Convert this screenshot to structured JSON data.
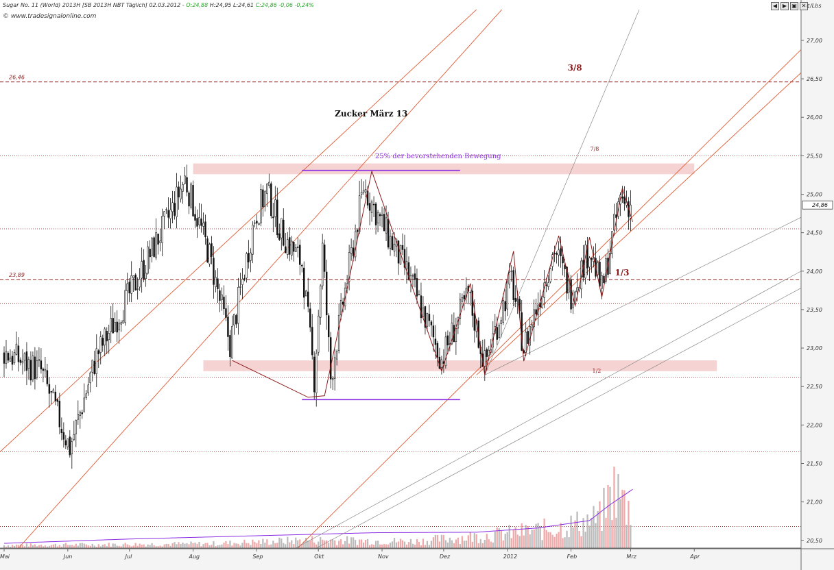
{
  "header": {
    "symbol": "Sugar No. 11 (World) 2013H [SB 2013H NBT Täglich] 02.03.2012 -",
    "open": "O:24,88",
    "high": "H:24,95",
    "low": "L:24,61",
    "close": "C:24,86",
    "change": "-0,06 -0,24%",
    "site": "www.tradesignalonline.com",
    "unit": "¢/Lbs",
    "window_buttons": [
      "◀",
      "▶",
      "▣",
      "✕"
    ]
  },
  "colors": {
    "candle": "#111111",
    "fib_line": "#e05a32",
    "trend_gray": "#888888",
    "level_dashed": "#8b1a1a",
    "zone_fill": "#f6d3d3",
    "purple": "#8a2be2",
    "volume_gray": "#bbbbbb",
    "volume_red": "#f0a8a8"
  },
  "chart_data": {
    "type": "candlestick",
    "title": "Zucker März 13",
    "y_axis": {
      "ylim": [
        20.4,
        27.4
      ],
      "ticks": [
        "20,50",
        "21,00",
        "21,50",
        "22,00",
        "22,50",
        "23,00",
        "23,50",
        "24,00",
        "24,50",
        "25,00",
        "25,50",
        "26,00",
        "26,50",
        "27,00"
      ],
      "tick_values": [
        20.5,
        21.0,
        21.5,
        22.0,
        22.5,
        23.0,
        23.5,
        24.0,
        24.5,
        25.0,
        25.5,
        26.0,
        26.5,
        27.0
      ],
      "last_price_label": "24,86",
      "last_price": 24.86
    },
    "x_axis": {
      "months": [
        "Mai",
        "Jun",
        "Jul",
        "Aug",
        "Sep",
        "Okt",
        "Nov",
        "Dez",
        "2012",
        "Feb",
        "Mrz",
        "Apr"
      ],
      "month_day_index": [
        0,
        31,
        61,
        92,
        123,
        153,
        184,
        214,
        245,
        276,
        305,
        336
      ],
      "last_day_index": 305,
      "xlim_days": [
        -2,
        388
      ]
    },
    "dashed_levels": [
      {
        "value": 26.46,
        "label": "26,46"
      },
      {
        "value": 23.89,
        "label": "23,89"
      }
    ],
    "dotted_levels": [
      25.5,
      24.55,
      23.58,
      22.62,
      21.65,
      20.68
    ],
    "zones": [
      {
        "from_day": 92,
        "to_day": 336,
        "low": 25.26,
        "high": 25.4
      },
      {
        "from_day": 97,
        "to_day": 347,
        "low": 22.7,
        "high": 22.84
      }
    ],
    "range_lines": [
      {
        "from_day": 145,
        "to_day": 222,
        "value": 25.31
      },
      {
        "from_day": 145,
        "to_day": 222,
        "value": 22.33
      }
    ],
    "annotations": [
      {
        "text": "Zucker März 13",
        "day": 176,
        "value": 26.0,
        "kind": "title"
      },
      {
        "text": "25% der bevorstehenden Bewegung",
        "day": 214,
        "value": 25.45,
        "kind": "purple"
      },
      {
        "text": "3/8",
        "day": 277,
        "value": 26.6,
        "kind": "bold"
      },
      {
        "text": "7/8",
        "day": 288,
        "value": 25.56,
        "kind": "small"
      },
      {
        "text": "1/3",
        "day": 300,
        "value": 23.94,
        "kind": "bold"
      },
      {
        "text": "1/2",
        "day": 289,
        "value": 22.67,
        "kind": "small"
      }
    ],
    "waves": [
      [
        [
          111,
          22.84
        ],
        [
          148,
          22.36
        ],
        [
          156,
          22.38
        ],
        [
          179,
          25.3
        ],
        [
          213,
          22.7
        ],
        [
          227,
          23.84
        ],
        [
          234,
          22.65
        ],
        [
          248,
          24.26
        ],
        [
          253,
          22.83
        ],
        [
          270,
          24.46
        ],
        [
          278,
          23.55
        ],
        [
          285,
          24.44
        ],
        [
          291,
          23.66
        ],
        [
          301,
          25.08
        ],
        [
          306,
          24.64
        ]
      ]
    ],
    "fib_lines": [
      [
        [
          -2,
          21.65
        ],
        [
          232,
          27.45
        ]
      ],
      [
        [
          7,
          20.4
        ],
        [
          244,
          27.45
        ]
      ],
      [
        [
          143,
          20.4
        ],
        [
          388,
          26.88
        ]
      ],
      [
        [
          230,
          22.65
        ],
        [
          388,
          26.58
        ]
      ]
    ],
    "trend_gray_lines": [
      [
        [
          142,
          20.4
        ],
        [
          388,
          24.0
        ]
      ],
      [
        [
          152,
          20.4
        ],
        [
          388,
          23.78
        ]
      ],
      [
        [
          234,
          22.65
        ],
        [
          388,
          24.7
        ]
      ],
      [
        [
          234,
          22.65
        ],
        [
          310,
          27.45
        ]
      ]
    ],
    "candle_series": {
      "segments": [
        {
          "from_day": 0,
          "to_day": 18,
          "start": 22.95,
          "end": 22.7
        },
        {
          "from_day": 18,
          "to_day": 32,
          "start": 22.7,
          "end": 21.7
        },
        {
          "from_day": 32,
          "to_day": 45,
          "start": 21.7,
          "end": 22.9
        },
        {
          "from_day": 45,
          "to_day": 65,
          "start": 22.9,
          "end": 23.9
        },
        {
          "from_day": 65,
          "to_day": 82,
          "start": 23.9,
          "end": 24.8
        },
        {
          "from_day": 82,
          "to_day": 88,
          "start": 24.8,
          "end": 25.2
        },
        {
          "from_day": 88,
          "to_day": 100,
          "start": 25.2,
          "end": 24.2
        },
        {
          "from_day": 100,
          "to_day": 110,
          "start": 24.2,
          "end": 23.05
        },
        {
          "from_day": 110,
          "to_day": 122,
          "start": 23.05,
          "end": 24.7
        },
        {
          "from_day": 122,
          "to_day": 128,
          "start": 24.7,
          "end": 25.05
        },
        {
          "from_day": 128,
          "to_day": 135,
          "start": 25.05,
          "end": 24.5
        },
        {
          "from_day": 135,
          "to_day": 145,
          "start": 24.5,
          "end": 24.1
        },
        {
          "from_day": 145,
          "to_day": 151,
          "start": 24.1,
          "end": 22.6
        },
        {
          "from_day": 151,
          "to_day": 155,
          "start": 22.6,
          "end": 24.3
        },
        {
          "from_day": 155,
          "to_day": 159,
          "start": 24.3,
          "end": 22.6
        },
        {
          "from_day": 159,
          "to_day": 165,
          "start": 22.6,
          "end": 23.6
        },
        {
          "from_day": 165,
          "to_day": 175,
          "start": 23.6,
          "end": 25.1
        },
        {
          "from_day": 175,
          "to_day": 186,
          "start": 25.1,
          "end": 24.5
        },
        {
          "from_day": 186,
          "to_day": 196,
          "start": 24.5,
          "end": 24.0
        },
        {
          "from_day": 196,
          "to_day": 213,
          "start": 24.0,
          "end": 22.85
        },
        {
          "from_day": 213,
          "to_day": 226,
          "start": 22.85,
          "end": 23.7
        },
        {
          "from_day": 226,
          "to_day": 234,
          "start": 23.7,
          "end": 22.8
        },
        {
          "from_day": 234,
          "to_day": 247,
          "start": 22.8,
          "end": 23.9
        },
        {
          "from_day": 247,
          "to_day": 253,
          "start": 23.9,
          "end": 23.0
        },
        {
          "from_day": 253,
          "to_day": 268,
          "start": 23.0,
          "end": 24.3
        },
        {
          "from_day": 268,
          "to_day": 276,
          "start": 24.3,
          "end": 23.7
        },
        {
          "from_day": 276,
          "to_day": 285,
          "start": 23.7,
          "end": 24.3
        },
        {
          "from_day": 285,
          "to_day": 291,
          "start": 24.3,
          "end": 23.75
        },
        {
          "from_day": 291,
          "to_day": 300,
          "start": 23.75,
          "end": 24.95
        },
        {
          "from_day": 300,
          "to_day": 305,
          "start": 24.95,
          "end": 24.86
        }
      ],
      "avg_range": 0.28
    },
    "volume": {
      "ylim": [
        0,
        2200
      ],
      "moving_average": [
        [
          0,
          90
        ],
        [
          60,
          170
        ],
        [
          120,
          230
        ],
        [
          180,
          290
        ],
        [
          230,
          300
        ],
        [
          260,
          380
        ],
        [
          285,
          520
        ],
        [
          295,
          820
        ],
        [
          300,
          950
        ],
        [
          306,
          1110
        ]
      ],
      "level": [
        [
          0,
          60
        ],
        [
          100,
          90
        ],
        [
          150,
          170
        ],
        [
          200,
          140
        ],
        [
          240,
          280
        ],
        [
          270,
          420
        ],
        [
          290,
          620
        ],
        [
          297,
          1250
        ],
        [
          306,
          700
        ]
      ]
    }
  }
}
